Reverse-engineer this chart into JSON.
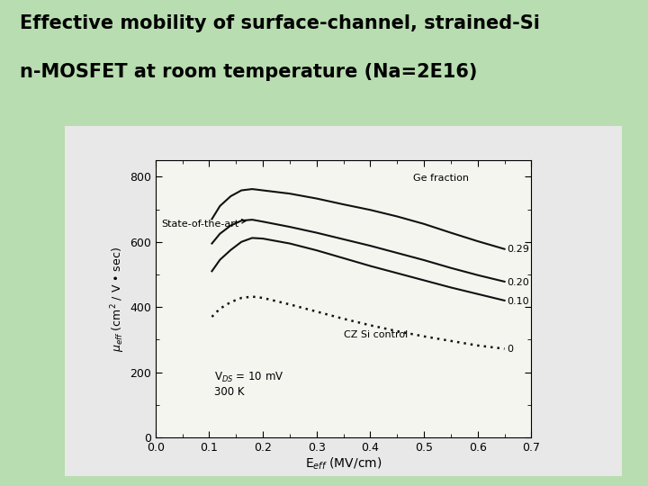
{
  "title_line1": "Effective mobility of surface-channel, strained-Si",
  "title_line2": "n-MOSFET at room temperature (Na=2E16)",
  "xlabel": "E$_{eff}$ (MV/cm)",
  "ylabel": "$\\mu_{eff}$ (cm$^2$ / V • sec)",
  "xlim": [
    0,
    0.7
  ],
  "ylim": [
    0,
    850
  ],
  "xticks": [
    0,
    0.1,
    0.2,
    0.3,
    0.4,
    0.5,
    0.6,
    0.7
  ],
  "yticks": [
    0,
    200,
    400,
    600,
    800
  ],
  "background_color": "#b8ddb0",
  "panel_bg_color": "#e8e8e8",
  "plot_bg_color": "#f5f5f0",
  "annotation_state_of_art": "State-of-the-art",
  "annotation_vds": "V$_{DS}$ = 10 mV",
  "annotation_temp": "300 K",
  "ge_fraction_label": "Ge fraction",
  "curves": {
    "ge029": {
      "label": "0.29",
      "color": "#111111",
      "linestyle": "solid",
      "x": [
        0.105,
        0.12,
        0.14,
        0.16,
        0.18,
        0.2,
        0.25,
        0.3,
        0.35,
        0.4,
        0.45,
        0.5,
        0.55,
        0.6,
        0.65
      ],
      "y": [
        670,
        710,
        740,
        758,
        762,
        758,
        748,
        733,
        715,
        698,
        678,
        655,
        628,
        602,
        578
      ]
    },
    "ge020": {
      "label": "0.20",
      "color": "#111111",
      "linestyle": "solid",
      "x": [
        0.105,
        0.12,
        0.14,
        0.16,
        0.18,
        0.2,
        0.25,
        0.3,
        0.35,
        0.4,
        0.45,
        0.5,
        0.55,
        0.6,
        0.65
      ],
      "y": [
        595,
        625,
        650,
        665,
        668,
        662,
        646,
        628,
        608,
        588,
        566,
        544,
        520,
        498,
        478
      ]
    },
    "ge010": {
      "label": "0.10",
      "color": "#111111",
      "linestyle": "solid",
      "x": [
        0.105,
        0.12,
        0.14,
        0.16,
        0.18,
        0.2,
        0.25,
        0.3,
        0.35,
        0.4,
        0.45,
        0.5,
        0.55,
        0.6,
        0.65
      ],
      "y": [
        510,
        545,
        575,
        600,
        612,
        610,
        595,
        574,
        550,
        526,
        504,
        482,
        460,
        440,
        420
      ]
    },
    "ge000": {
      "label": "0",
      "color": "#111111",
      "linestyle": "dotted",
      "x": [
        0.105,
        0.12,
        0.14,
        0.16,
        0.18,
        0.2,
        0.25,
        0.3,
        0.35,
        0.4,
        0.45,
        0.5,
        0.55,
        0.6,
        0.65
      ],
      "y": [
        370,
        395,
        415,
        428,
        432,
        428,
        408,
        386,
        364,
        344,
        326,
        310,
        296,
        282,
        272
      ]
    }
  }
}
